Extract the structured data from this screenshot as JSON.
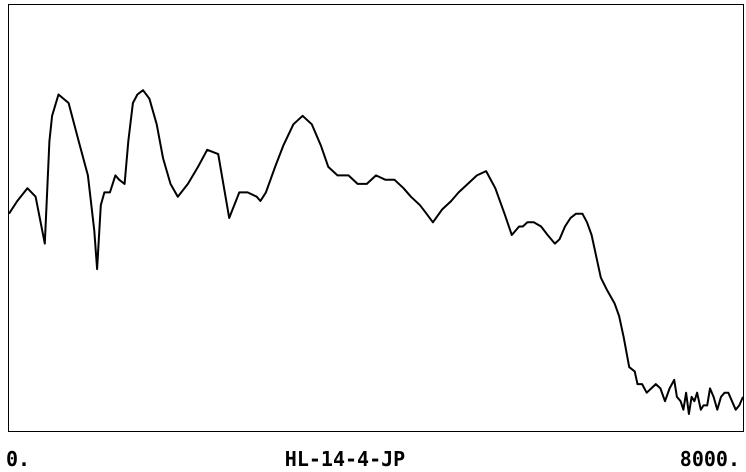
{
  "chart_data": {
    "type": "line",
    "title": "",
    "xlabel": "HL-14-4-JP",
    "ylabel": "",
    "xlim": [
      0,
      8000
    ],
    "ylim": [
      0,
      100
    ],
    "x_tick_labels": [
      "0.",
      "8000."
    ],
    "grid": false,
    "legend": "none",
    "line_color": "#000000",
    "series": [
      {
        "x": [
          0,
          90,
          200,
          290,
          390,
          420,
          440,
          470,
          540,
          650,
          760,
          860,
          930,
          960,
          990,
          1000,
          1040,
          1100,
          1160,
          1200,
          1260,
          1300,
          1350,
          1400,
          1460,
          1530,
          1610,
          1680,
          1760,
          1840,
          1950,
          2060,
          2160,
          2280,
          2400,
          2510,
          2600,
          2700,
          2740,
          2800,
          2850,
          2900,
          2990,
          3100,
          3200,
          3300,
          3400,
          3480,
          3580,
          3700,
          3800,
          3900,
          4000,
          4100,
          4200,
          4300,
          4380,
          4480,
          4550,
          4620,
          4720,
          4820,
          4900,
          5000,
          5100,
          5200,
          5300,
          5400,
          5480,
          5560,
          5600,
          5650,
          5720,
          5800,
          5870,
          5950,
          6000,
          6060,
          6120,
          6180,
          6250,
          6300,
          6350,
          6400,
          6450,
          6520,
          6600,
          6650,
          6700,
          6760,
          6820,
          6850,
          6900,
          6950,
          7000,
          7050,
          7100,
          7150,
          7200,
          7250,
          7280,
          7320,
          7350,
          7380,
          7410,
          7440,
          7470,
          7500,
          7540,
          7570,
          7610,
          7640,
          7680,
          7720,
          7760,
          7800,
          7840,
          7880,
          7920,
          7960,
          8000
        ],
        "values": [
          51,
          54,
          57,
          55,
          44,
          58,
          68,
          74,
          79,
          77,
          68,
          60,
          47,
          38,
          49,
          53,
          56,
          56,
          60,
          59,
          58,
          68,
          77,
          79,
          80,
          78,
          72,
          64,
          58,
          55,
          58,
          62,
          66,
          65,
          50,
          56,
          56,
          55,
          54,
          56,
          59,
          62,
          67,
          72,
          74,
          72,
          67,
          62,
          60,
          60,
          58,
          58,
          60,
          59,
          59,
          57,
          55,
          53,
          51,
          49,
          52,
          54,
          56,
          58,
          60,
          61,
          57,
          51,
          46,
          48,
          48,
          49,
          49,
          48,
          46,
          44,
          45,
          48,
          50,
          51,
          51,
          49,
          46,
          41,
          36,
          33,
          30,
          27,
          22,
          15,
          14,
          11,
          11,
          9,
          10,
          11,
          10,
          7,
          10,
          12,
          8,
          7,
          5,
          9,
          4,
          8,
          7,
          9,
          5,
          6,
          6,
          10,
          8,
          5,
          8,
          9,
          9,
          7,
          5,
          6,
          8
        ]
      }
    ]
  }
}
